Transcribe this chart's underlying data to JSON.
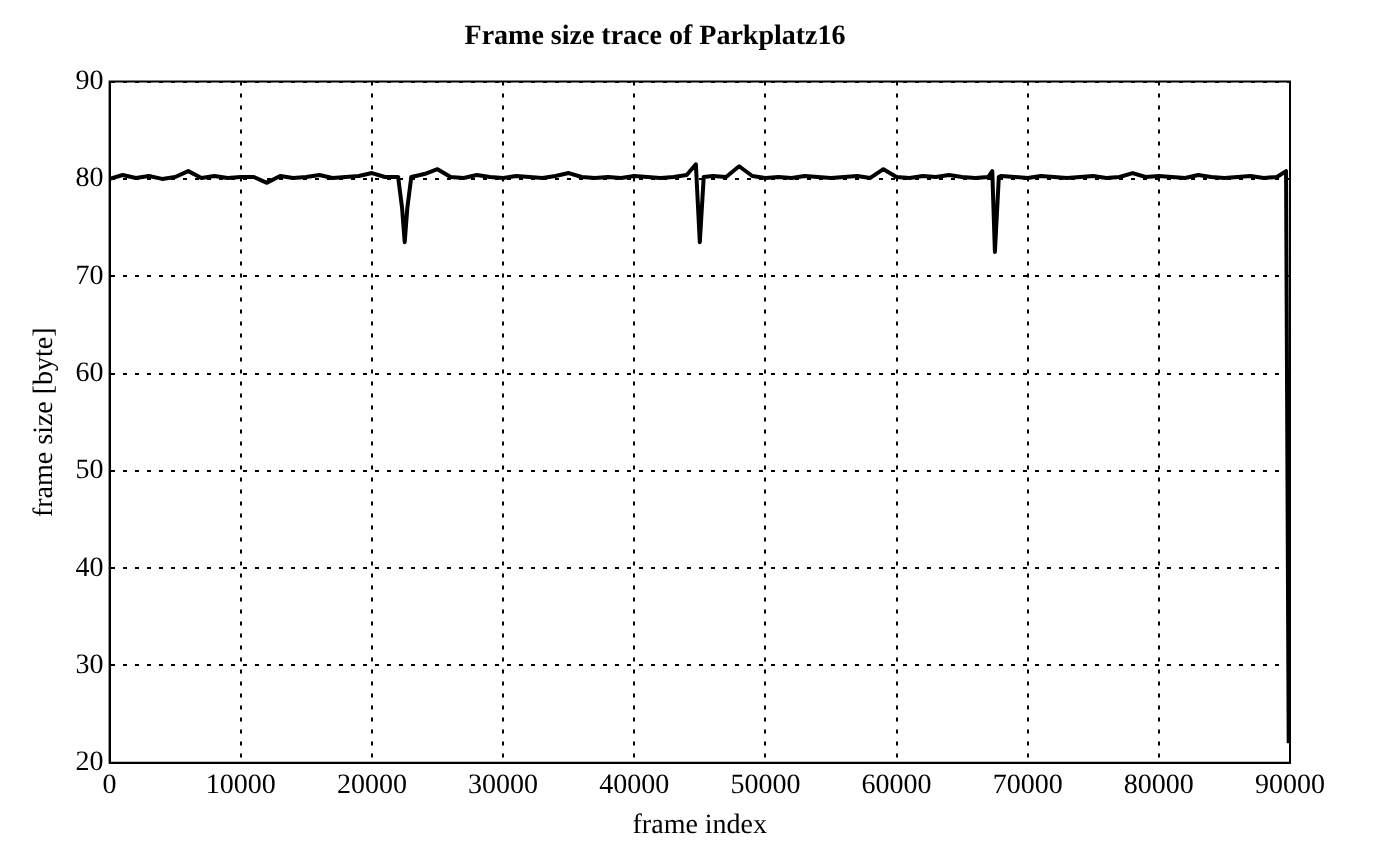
{
  "chart_data": {
    "type": "line",
    "title": "Frame size trace of Parkplatz16",
    "xlabel": "frame index",
    "ylabel": "frame size [byte]",
    "x": [
      0,
      1000,
      2000,
      3000,
      4000,
      5000,
      6000,
      7000,
      8000,
      9000,
      10000,
      11000,
      12000,
      13000,
      14000,
      15000,
      16000,
      17000,
      18000,
      19000,
      20000,
      21000,
      22000,
      22300,
      22500,
      22700,
      23000,
      24000,
      25000,
      26000,
      27000,
      28000,
      29000,
      30000,
      31000,
      32000,
      33000,
      34000,
      35000,
      36000,
      37000,
      38000,
      39000,
      40000,
      41000,
      42000,
      43000,
      44000,
      44700,
      45000,
      45300,
      46000,
      47000,
      48000,
      49000,
      50000,
      51000,
      52000,
      53000,
      54000,
      55000,
      56000,
      57000,
      58000,
      59000,
      60000,
      61000,
      62000,
      63000,
      64000,
      65000,
      66000,
      67000,
      67300,
      67500,
      67800,
      68000,
      69000,
      70000,
      71000,
      72000,
      73000,
      74000,
      75000,
      76000,
      77000,
      78000,
      79000,
      80000,
      81000,
      82000,
      83000,
      84000,
      85000,
      86000,
      87000,
      88000,
      89000,
      89700,
      89900
    ],
    "series": [
      {
        "color": "#000000",
        "values": [
          80,
          80.4,
          80.1,
          80.3,
          80,
          80.2,
          80.8,
          80.1,
          80.3,
          80.1,
          80.2,
          80.2,
          79.6,
          80.3,
          80.1,
          80.2,
          80.4,
          80.1,
          80.2,
          80.3,
          80.6,
          80.2,
          80.2,
          77,
          73.5,
          77,
          80.2,
          80.5,
          81,
          80.2,
          80.1,
          80.4,
          80.2,
          80.1,
          80.3,
          80.2,
          80.1,
          80.3,
          80.6,
          80.2,
          80.1,
          80.2,
          80.1,
          80.3,
          80.2,
          80.1,
          80.2,
          80.4,
          81.5,
          73.5,
          80.2,
          80.3,
          80.2,
          81.3,
          80.3,
          80.1,
          80.2,
          80.1,
          80.3,
          80.2,
          80.1,
          80.2,
          80.3,
          80.1,
          81,
          80.2,
          80.1,
          80.3,
          80.2,
          80.4,
          80.2,
          80.1,
          80.2,
          80.8,
          72.5,
          80.2,
          80.3,
          80.2,
          80.1,
          80.3,
          80.2,
          80.1,
          80.2,
          80.3,
          80.1,
          80.2,
          80.6,
          80.2,
          80.3,
          80.2,
          80.1,
          80.4,
          80.2,
          80.1,
          80.2,
          80.3,
          80.1,
          80.2,
          80.8,
          22
        ]
      }
    ],
    "xlim": [
      0,
      90000
    ],
    "xticks": [
      0,
      10000,
      20000,
      30000,
      40000,
      50000,
      60000,
      70000,
      80000,
      90000
    ],
    "ylim": [
      20,
      90
    ],
    "yticks": [
      20,
      30,
      40,
      50,
      60,
      70,
      80,
      90
    ],
    "grid": true,
    "legend": false,
    "marker": "none",
    "line_style": "solid"
  }
}
